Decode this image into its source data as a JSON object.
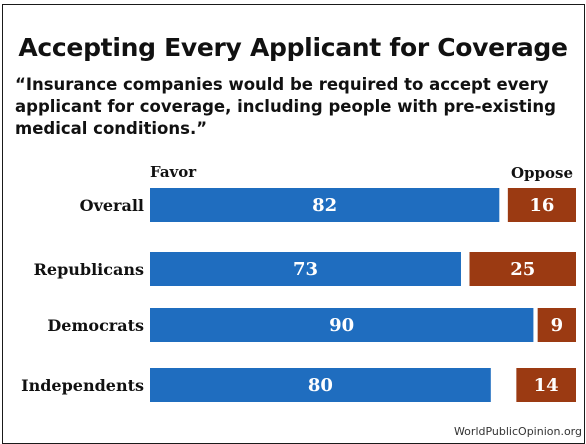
{
  "chart_data": {
    "type": "bar",
    "title": "Accepting Every Applicant for Coverage",
    "subtitle": "“Insurance companies would be required to accept every applicant for coverage, including people with pre-existing medical conditions.”",
    "categories": [
      "Overall",
      "Republicans",
      "Democrats",
      "Independents"
    ],
    "series": [
      {
        "name": "Favor",
        "values": [
          82,
          73,
          90,
          80
        ],
        "color": "#1f6dbf"
      },
      {
        "name": "Oppose",
        "values": [
          16,
          25,
          9,
          14
        ],
        "color": "#9b3a12"
      }
    ],
    "xlim": [
      0,
      100
    ],
    "legend": "column headers above bars",
    "grid": false
  },
  "source": "WorldPublicOpinion.org"
}
